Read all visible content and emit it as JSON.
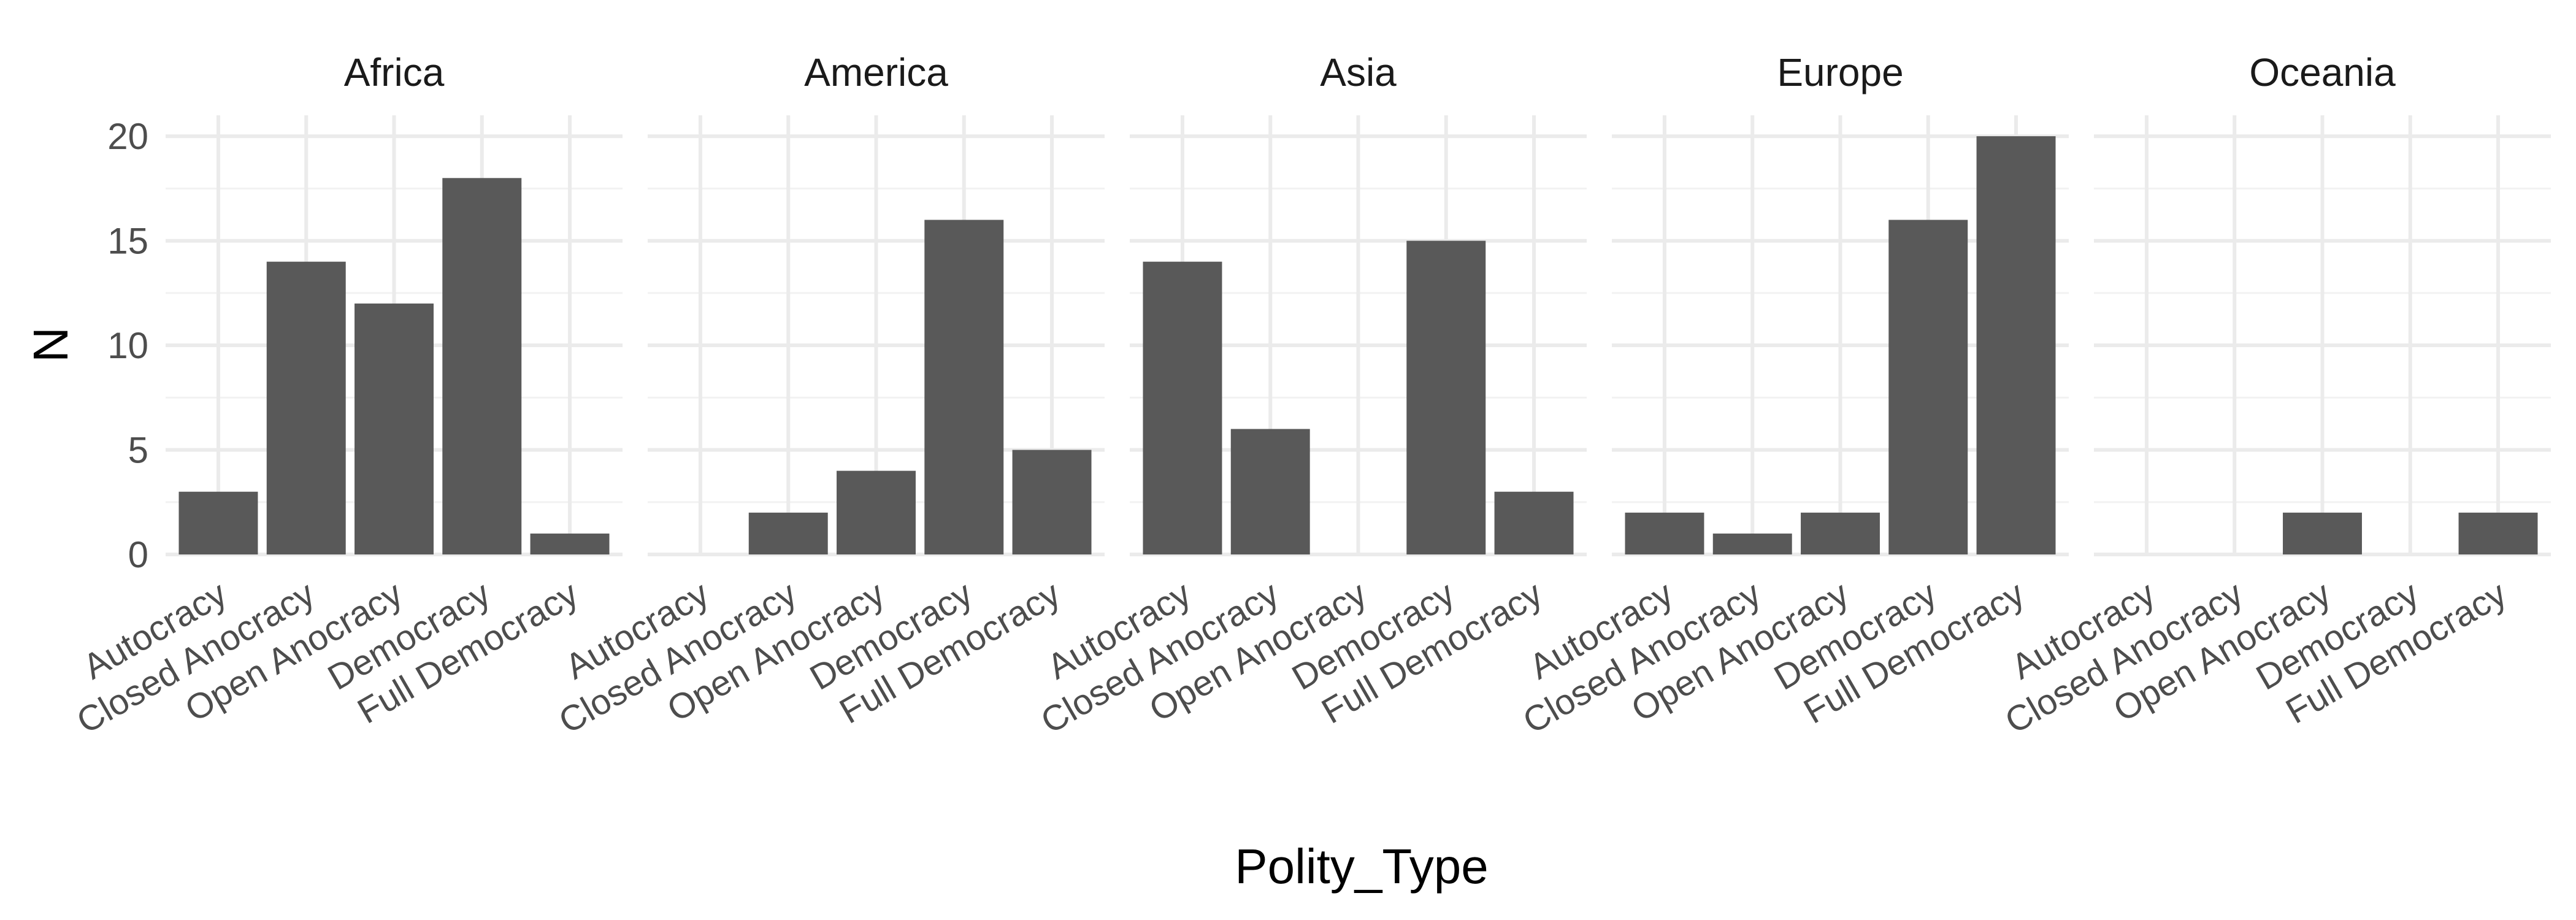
{
  "chart_data": {
    "type": "bar",
    "xlabel": "Polity_Type",
    "ylabel": "N",
    "ylim": [
      0,
      21
    ],
    "yticks": [
      0,
      5,
      10,
      15,
      20
    ],
    "categories": [
      "Autocracy",
      "Closed Anocracy",
      "Open Anocracy",
      "Democracy",
      "Full Democracy"
    ],
    "facets": [
      {
        "name": "Africa",
        "values": [
          3,
          14,
          12,
          18,
          1
        ]
      },
      {
        "name": "America",
        "values": [
          0,
          2,
          4,
          16,
          5
        ]
      },
      {
        "name": "Asia",
        "values": [
          14,
          6,
          0,
          15,
          3
        ]
      },
      {
        "name": "Europe",
        "values": [
          2,
          1,
          2,
          16,
          20
        ]
      },
      {
        "name": "Oceania",
        "values": [
          0,
          0,
          2,
          0,
          2
        ]
      }
    ],
    "grid": true,
    "colors": {
      "bar": "#595959",
      "grid": "#ebebeb",
      "background": "#ffffff"
    }
  }
}
